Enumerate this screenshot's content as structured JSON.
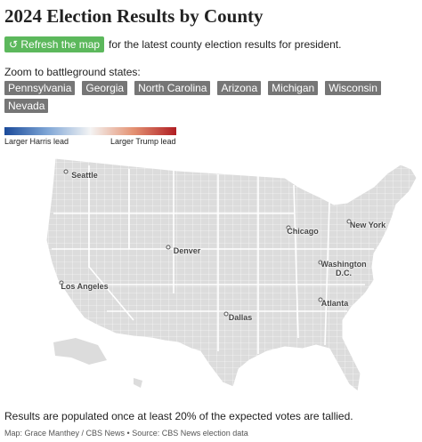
{
  "header": {
    "title": "2024 Election Results by County",
    "refresh_button": "Refresh the map",
    "refresh_text": "for the latest county election results for president."
  },
  "zoom": {
    "label": "Zoom to battleground states:",
    "states": [
      "Pennsylvania",
      "Georgia",
      "North Carolina",
      "Arizona",
      "Michigan",
      "Wisconsin",
      "Nevada"
    ]
  },
  "legend": {
    "left": "Larger Harris lead",
    "right": "Larger Trump lead"
  },
  "map": {
    "cities": [
      "Seattle",
      "Denver",
      "Los Angeles",
      "Chicago",
      "New York",
      "Washington D.C.",
      "Dallas",
      "Atlanta"
    ]
  },
  "footer": {
    "note": "Results are populated once at least 20% of the expected votes are tallied.",
    "credit": "Map: Grace Manthey / CBS News • Source: CBS News election data"
  }
}
